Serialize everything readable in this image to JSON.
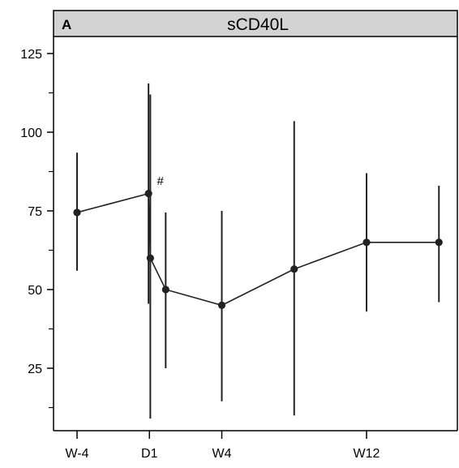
{
  "chart_data": {
    "type": "line",
    "title": "sCD40L",
    "panel_label": "A",
    "xlabel": "",
    "ylabel": "",
    "y_ticks": [
      25,
      50,
      75,
      100,
      125
    ],
    "y_minor_ticks": [
      12.5,
      37.5,
      62.5,
      87.5,
      112.5
    ],
    "ylim": [
      6,
      129
    ],
    "x_ticks": [
      {
        "label": "W-4",
        "x": -4
      },
      {
        "label": "D1",
        "x": 0
      },
      {
        "label": "W4",
        "x": 4
      },
      {
        "label": "W12",
        "x": 12
      }
    ],
    "xlim": [
      -5,
      15
    ],
    "grid": false,
    "legend": "none",
    "series": [
      {
        "points": [
          {
            "x": -4,
            "y": 74.5,
            "low": 56,
            "high": 93.5
          },
          {
            "x": -0.05,
            "y": 80.5,
            "low": 45.5,
            "high": 115.5
          },
          {
            "x": 0.05,
            "y": 60,
            "low": 9,
            "high": 112
          },
          {
            "x": 0.9,
            "y": 50,
            "low": 25,
            "high": 74.5
          },
          {
            "x": 4,
            "y": 45,
            "low": 14.5,
            "high": 75
          },
          {
            "x": 8,
            "y": 56.5,
            "low": 10,
            "high": 103.5
          },
          {
            "x": 12,
            "y": 65,
            "low": 43,
            "high": 87
          },
          {
            "x": 16,
            "y": 65,
            "low": 46,
            "high": 83
          }
        ]
      }
    ],
    "annotations": [
      {
        "text": "#",
        "x": 0.6,
        "y": 84.5
      }
    ],
    "colors": {
      "line": "#222222",
      "header_fill": "#d3d3d3",
      "frame": "#000000"
    }
  }
}
